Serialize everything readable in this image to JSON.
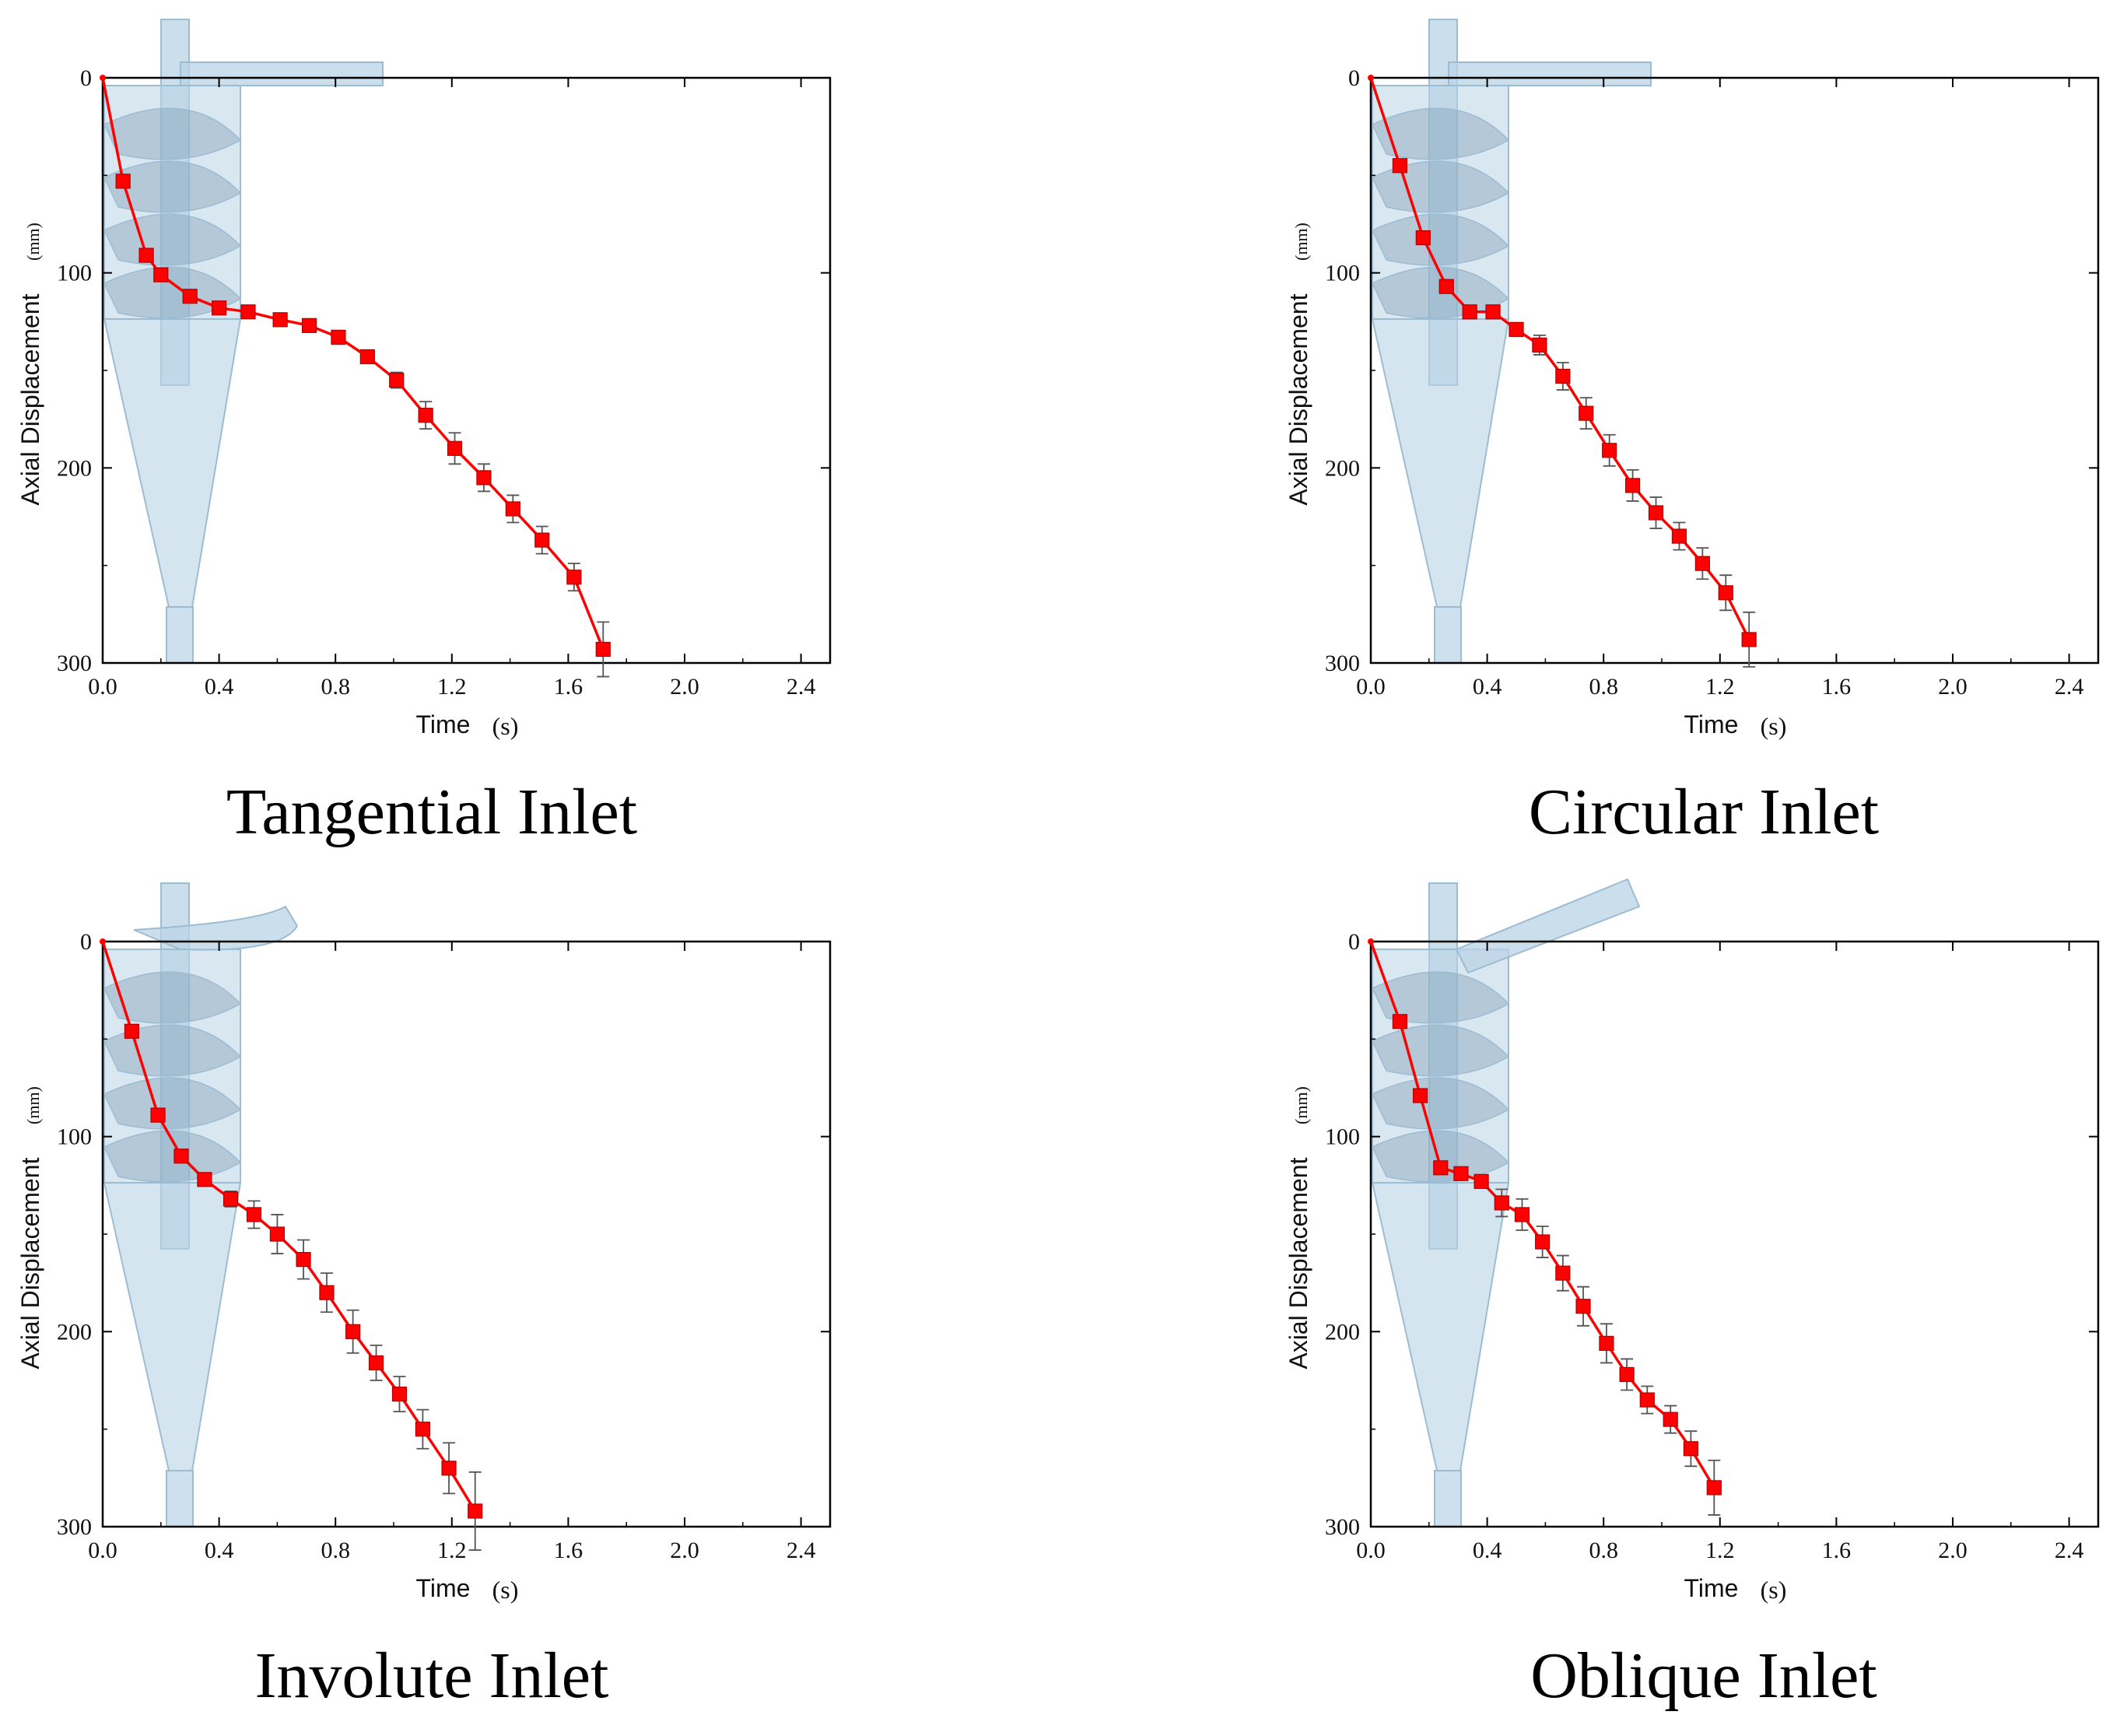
{
  "figure": {
    "chart_data": [
      {
        "type": "line",
        "caption": "Tangential Inlet",
        "xlabel": "Time",
        "xunit": "(s)",
        "ylabel": "Axial Displacement",
        "yunit": "(mm)",
        "xlim": [
          0,
          2.5
        ],
        "ylim": [
          0,
          300
        ],
        "y_inverted": true,
        "xticks": [
          "0.0",
          "0.4",
          "0.8",
          "1.2",
          "1.6",
          "2.0",
          "2.4"
        ],
        "yticks": [
          "0",
          "100",
          "200",
          "300"
        ],
        "series": [
          {
            "name": "Tangential Inlet",
            "color": "#ff0000",
            "x": [
              0.0,
              0.07,
              0.15,
              0.2,
              0.3,
              0.4,
              0.5,
              0.61,
              0.71,
              0.81,
              0.91,
              1.01,
              1.11,
              1.21,
              1.31,
              1.41,
              1.51,
              1.62,
              1.72
            ],
            "y": [
              0,
              53,
              91,
              101,
              112,
              118,
              120,
              124,
              127,
              133,
              143,
              155,
              173,
              190,
              205,
              221,
              237,
              256,
              293
            ],
            "error": [
              0,
              0,
              0,
              0,
              0,
              0,
              0,
              0,
              0,
              2,
              3,
              4,
              7,
              8,
              7,
              7,
              7,
              7,
              14
            ]
          }
        ]
      },
      {
        "type": "line",
        "caption": "Circular Inlet",
        "xlabel": "Time",
        "xunit": "(s)",
        "ylabel": "Axial Displacement",
        "yunit": "(mm)",
        "xlim": [
          0,
          2.5
        ],
        "ylim": [
          0,
          300
        ],
        "y_inverted": true,
        "xticks": [
          "0.0",
          "0.4",
          "0.8",
          "1.2",
          "1.6",
          "2.0",
          "2.4"
        ],
        "yticks": [
          "0",
          "100",
          "200",
          "300"
        ],
        "series": [
          {
            "name": "Circular Inlet",
            "color": "#ff0000",
            "x": [
              0.0,
              0.1,
              0.18,
              0.26,
              0.34,
              0.42,
              0.5,
              0.58,
              0.66,
              0.74,
              0.82,
              0.9,
              0.98,
              1.06,
              1.14,
              1.22,
              1.3
            ],
            "y": [
              0,
              45,
              82,
              107,
              120,
              120,
              129,
              137,
              153,
              172,
              191,
              209,
              223,
              235,
              249,
              264,
              288
            ],
            "error": [
              0,
              0,
              0,
              0,
              0,
              0,
              2,
              5,
              7,
              8,
              8,
              8,
              8,
              7,
              8,
              9,
              14
            ]
          }
        ]
      },
      {
        "type": "line",
        "caption": "Involute Inlet",
        "xlabel": "Time",
        "xunit": "(s)",
        "ylabel": "Axial Displacement",
        "yunit": "(mm)",
        "xlim": [
          0,
          2.5
        ],
        "ylim": [
          0,
          300
        ],
        "y_inverted": true,
        "xticks": [
          "0.0",
          "0.4",
          "0.8",
          "1.2",
          "1.6",
          "2.0",
          "2.4"
        ],
        "yticks": [
          "0",
          "100",
          "200",
          "300"
        ],
        "series": [
          {
            "name": "Involute Inlet",
            "color": "#ff0000",
            "x": [
              0.0,
              0.1,
              0.19,
              0.27,
              0.35,
              0.44,
              0.52,
              0.6,
              0.69,
              0.77,
              0.86,
              0.94,
              1.02,
              1.1,
              1.19,
              1.28
            ],
            "y": [
              0,
              46,
              89,
              110,
              122,
              132,
              140,
              150,
              163,
              180,
              200,
              216,
              232,
              250,
              270,
              292
            ],
            "error": [
              0,
              0,
              0,
              0,
              0,
              4,
              7,
              10,
              10,
              10,
              11,
              9,
              9,
              10,
              13,
              20
            ]
          }
        ]
      },
      {
        "type": "line",
        "caption": "Oblique Inlet",
        "xlabel": "Time",
        "xunit": "(s)",
        "ylabel": "Axial Displacement",
        "yunit": "(mm)",
        "xlim": [
          0,
          2.5
        ],
        "ylim": [
          0,
          300
        ],
        "y_inverted": true,
        "xticks": [
          "0.0",
          "0.4",
          "0.8",
          "1.2",
          "1.6",
          "2.0",
          "2.4"
        ],
        "yticks": [
          "0",
          "100",
          "200",
          "300"
        ],
        "series": [
          {
            "name": "Oblique Inlet",
            "color": "#ff0000",
            "x": [
              0.0,
              0.1,
              0.17,
              0.24,
              0.31,
              0.38,
              0.45,
              0.52,
              0.59,
              0.66,
              0.73,
              0.81,
              0.88,
              0.95,
              1.03,
              1.1,
              1.18
            ],
            "y": [
              0,
              41,
              79,
              116,
              119,
              123,
              134,
              140,
              154,
              170,
              187,
              206,
              222,
              235,
              245,
              260,
              280
            ],
            "error": [
              0,
              0,
              0,
              0,
              0,
              3,
              7,
              8,
              8,
              9,
              10,
              10,
              8,
              7,
              7,
              9,
              14
            ]
          }
        ]
      }
    ]
  }
}
